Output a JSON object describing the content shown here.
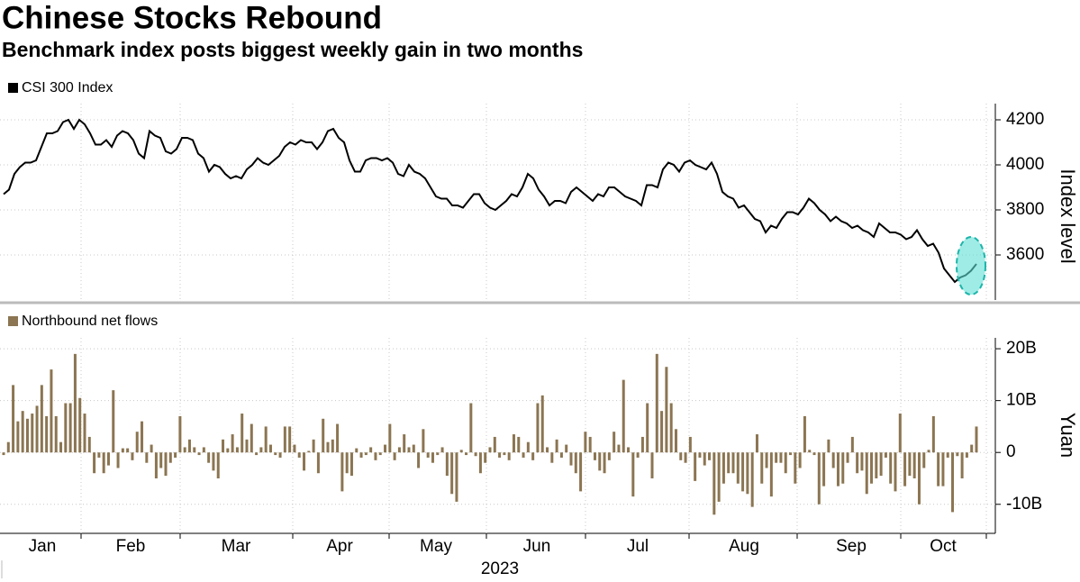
{
  "chart_data": [
    {
      "type": "line",
      "title": "Chinese Stocks Rebound",
      "subtitle": "Benchmark index posts biggest weekly gain in two months",
      "ylabel": "Index level",
      "ylim": [
        3400,
        4272
      ],
      "yticks": [
        4200,
        4000,
        3800,
        3600
      ],
      "grid": true,
      "series": [
        {
          "name": "CSI 300 Index",
          "color": "#000000",
          "values": [
            3870,
            3890,
            3960,
            3990,
            4010,
            4010,
            4020,
            4080,
            4140,
            4140,
            4150,
            4190,
            4200,
            4160,
            4200,
            4180,
            4140,
            4090,
            4090,
            4110,
            4080,
            4130,
            4150,
            4140,
            4110,
            4050,
            4030,
            4150,
            4130,
            4120,
            4060,
            4050,
            4070,
            4120,
            4120,
            4110,
            4050,
            4030,
            3970,
            4000,
            3990,
            3960,
            3940,
            3950,
            3940,
            3980,
            4000,
            4030,
            4010,
            4000,
            4020,
            4040,
            4080,
            4100,
            4090,
            4110,
            4100,
            4100,
            4070,
            4100,
            4150,
            4160,
            4120,
            4100,
            4020,
            3970,
            3970,
            4020,
            4030,
            4030,
            4020,
            4030,
            4010,
            3960,
            3950,
            4000,
            3970,
            3960,
            3940,
            3900,
            3860,
            3850,
            3850,
            3820,
            3820,
            3810,
            3840,
            3870,
            3870,
            3830,
            3810,
            3800,
            3820,
            3840,
            3870,
            3860,
            3900,
            3960,
            3940,
            3890,
            3860,
            3820,
            3840,
            3840,
            3830,
            3880,
            3900,
            3880,
            3860,
            3840,
            3870,
            3860,
            3900,
            3900,
            3880,
            3860,
            3850,
            3840,
            3820,
            3910,
            3910,
            3900,
            3980,
            4010,
            4000,
            3970,
            4010,
            4020,
            4000,
            3990,
            3980,
            4010,
            3960,
            3880,
            3860,
            3850,
            3810,
            3820,
            3790,
            3760,
            3750,
            3700,
            3730,
            3720,
            3760,
            3790,
            3790,
            3780,
            3810,
            3850,
            3830,
            3800,
            3780,
            3750,
            3770,
            3750,
            3740,
            3720,
            3730,
            3710,
            3700,
            3680,
            3740,
            3720,
            3700,
            3700,
            3690,
            3670,
            3680,
            3710,
            3670,
            3640,
            3650,
            3610,
            3540,
            3510,
            3480,
            3500,
            3510,
            3530,
            3560
          ]
        }
      ]
    },
    {
      "type": "bar",
      "ylabel": "Yuan",
      "ylim": [
        -15.6,
        22.1
      ],
      "yticks": [
        {
          "value": 20,
          "label": "20B"
        },
        {
          "value": 10,
          "label": "10B"
        },
        0,
        {
          "value": -10,
          "label": "-10B"
        }
      ],
      "grid": true,
      "x_axis_labels": [
        "Jan",
        "Feb",
        "Mar",
        "Apr",
        "May",
        "Jun",
        "Jul",
        "Aug",
        "Sep",
        "Oct"
      ],
      "x_label": "2023",
      "series": [
        {
          "name": "Northbound net flows",
          "color": "#8b7552",
          "values": [
            -0.5,
            2,
            13,
            6,
            8,
            6.5,
            7.5,
            9,
            13,
            7,
            16,
            7,
            2,
            9.5,
            9.5,
            19,
            10.5,
            7.5,
            3,
            -4,
            -1,
            -4,
            -2.5,
            12,
            -3,
            0.8,
            0.8,
            -1.5,
            4,
            6,
            -2,
            1.5,
            -5,
            -3,
            -4.5,
            -2,
            -1,
            7,
            1,
            2.5,
            1,
            -0.5,
            1,
            -2,
            -3.5,
            -5,
            2.5,
            0.8,
            3.5,
            1,
            7.5,
            2.5,
            5.5,
            -0.5,
            1,
            5,
            1.5,
            -0.5,
            -1,
            5,
            5,
            1.5,
            -1,
            -3.5,
            0.3,
            2.5,
            -4,
            6.5,
            2,
            2.5,
            5.5,
            -7.5,
            -4,
            -4.5,
            0.8,
            -1,
            -0.5,
            1,
            -1.5,
            -0.5,
            1.5,
            5.5,
            -1.5,
            1,
            3.5,
            1,
            1.5,
            -3,
            4.5,
            -1,
            -2,
            -0.5,
            1,
            -4.5,
            -8,
            -9.5,
            0.5,
            -0.5,
            9.5,
            -0.7,
            -4,
            -2,
            1,
            3,
            -1,
            -0.5,
            -1.5,
            3.5,
            3,
            -1,
            2,
            -1.5,
            9.5,
            11,
            1,
            -2,
            2.5,
            -1,
            1.5,
            -2.5,
            -4,
            -7.5,
            4,
            3,
            -1.5,
            -3.5,
            -4,
            -1.5,
            4,
            1.5,
            14,
            1,
            -8.5,
            -1,
            3,
            9.5,
            -5,
            19,
            8,
            16.5,
            9.5,
            4.5,
            -1.5,
            -2,
            3,
            -5.5,
            -1,
            -2.5,
            -1.5,
            -12,
            -9.5,
            -6,
            -4,
            -4,
            -6,
            -7.5,
            -8,
            -10.5,
            3.5,
            -6,
            -3,
            -8.5,
            -2,
            -2,
            -4,
            -0.5,
            -6,
            -3,
            7,
            0.5,
            -0.5,
            -10,
            -6.5,
            2.5,
            -3,
            -6.5,
            -6,
            -2,
            3,
            -4,
            -3.5,
            -8,
            -6,
            -5,
            -4.5,
            -1,
            -6,
            -7.5,
            7.5,
            -6.5,
            -4.5,
            -5,
            -10,
            -3,
            0.5,
            7,
            -6.5,
            -6.5,
            -1,
            -11.5,
            -0.7,
            -5,
            -1,
            1.5,
            5
          ]
        }
      ]
    }
  ]
}
